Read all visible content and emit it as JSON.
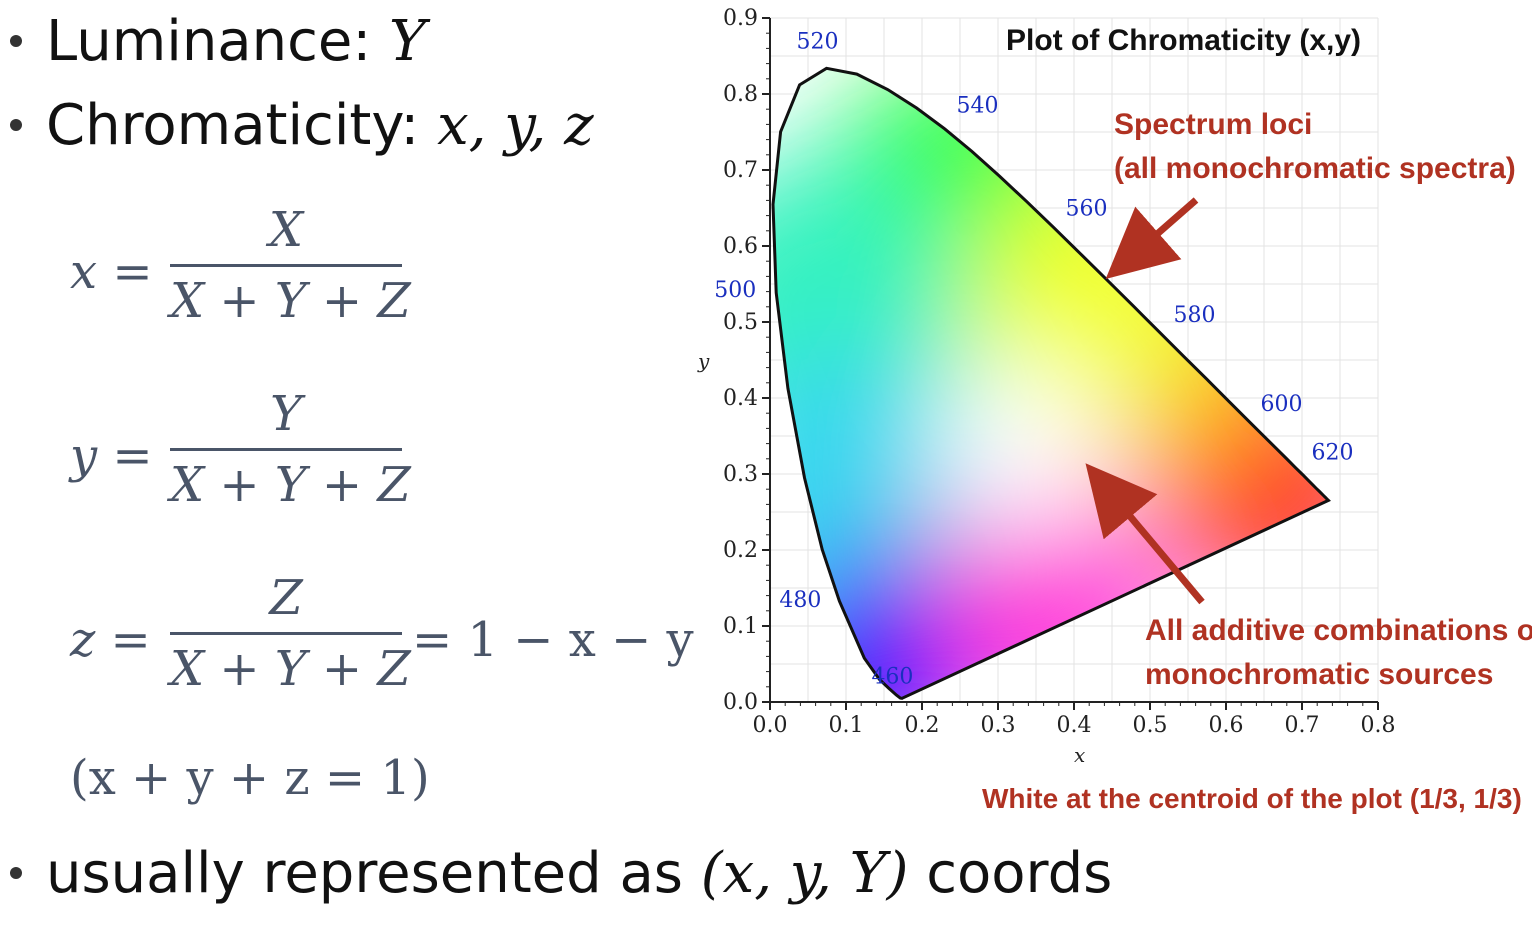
{
  "bullets": [
    {
      "label": "Luminance:",
      "symbol": "Y"
    },
    {
      "label": "Chromaticity:",
      "symbol": "x, y, z"
    }
  ],
  "equations": {
    "x": {
      "lhs": "x =",
      "numerator": "X",
      "denominator": "X + Y + Z"
    },
    "y": {
      "lhs": "y =",
      "numerator": "Y",
      "denominator": "X + Y + Z"
    },
    "z": {
      "lhs": "z =",
      "numerator": "Z",
      "denominator": "X + Y + Z",
      "tail": "= 1 − x − y"
    },
    "constraint": "(x + y + z = 1)"
  },
  "footer": {
    "prefix": "usually represented as",
    "coords": "(x, y, Y)",
    "suffix": "coords"
  },
  "chart_data": {
    "type": "scatter",
    "title": "Plot of Chromaticity (x,y)",
    "xlabel": "x",
    "ylabel": "y",
    "xlim": [
      0.0,
      0.8
    ],
    "ylim": [
      0.0,
      0.9
    ],
    "x_ticks": [
      "0.0",
      "0.1",
      "0.2",
      "0.3",
      "0.4",
      "0.5",
      "0.6",
      "0.7",
      "0.8"
    ],
    "y_ticks": [
      "0.0",
      "0.1",
      "0.2",
      "0.3",
      "0.4",
      "0.5",
      "0.6",
      "0.7",
      "0.8",
      "0.9"
    ],
    "grid": true,
    "series": [
      {
        "x": [
          0.1741,
          0.1738,
          0.1714,
          0.1666,
          0.1566,
          0.144,
          0.1241,
          0.0913,
          0.0687,
          0.0454,
          0.0235,
          0.0082,
          0.0039,
          0.0139,
          0.0389,
          0.0743,
          0.1142,
          0.1547,
          0.1929,
          0.2296,
          0.2658,
          0.3016,
          0.3373,
          0.3731,
          0.4087,
          0.4441,
          0.4788,
          0.5125,
          0.5448,
          0.5752,
          0.6029,
          0.627,
          0.6482,
          0.6658,
          0.6801,
          0.6915,
          0.7006,
          0.7079,
          0.714,
          0.719,
          0.723,
          0.726,
          0.7283,
          0.73,
          0.7311,
          0.732,
          0.7327,
          0.7334,
          0.734,
          0.7344,
          0.7347,
          0.1741
        ],
        "y": [
          0.005,
          0.0049,
          0.0051,
          0.0089,
          0.0177,
          0.0297,
          0.0578,
          0.1327,
          0.2007,
          0.295,
          0.4127,
          0.5384,
          0.6548,
          0.7502,
          0.812,
          0.8338,
          0.8262,
          0.8059,
          0.7816,
          0.7543,
          0.7243,
          0.6923,
          0.6589,
          0.6245,
          0.5896,
          0.5547,
          0.5202,
          0.4866,
          0.4544,
          0.4242,
          0.3965,
          0.3725,
          0.3514,
          0.334,
          0.3197,
          0.3083,
          0.2993,
          0.292,
          0.2859,
          0.2809,
          0.277,
          0.274,
          0.2717,
          0.27,
          0.2689,
          0.268,
          0.2673,
          0.2666,
          0.266,
          0.2656,
          0.2653,
          0.005
        ]
      }
    ],
    "wavelength_labels": [
      {
        "text": "460",
        "x": 0.144,
        "y": 0.0297
      },
      {
        "text": "480",
        "x": 0.0913,
        "y": 0.1327
      },
      {
        "text": "500",
        "x": 0.0082,
        "y": 0.5384
      },
      {
        "text": "520",
        "x": 0.0743,
        "y": 0.8338
      },
      {
        "text": "540",
        "x": 0.2296,
        "y": 0.7543
      },
      {
        "text": "560",
        "x": 0.3731,
        "y": 0.6245
      },
      {
        "text": "580",
        "x": 0.5125,
        "y": 0.4866
      },
      {
        "text": "600",
        "x": 0.627,
        "y": 0.3725
      },
      {
        "text": "620",
        "x": 0.6915,
        "y": 0.3083
      }
    ],
    "annotations": [
      {
        "text": "Spectrum loci"
      },
      {
        "text": "(all monochromatic spectra)"
      },
      {
        "text": "All additive combinations of"
      },
      {
        "text": "monochromatic sources"
      },
      {
        "text": "White at the centroid of the plot (1/3, 1/3)"
      }
    ],
    "colors": {
      "annotation": "#b03222",
      "wavelength": "#1a2fbf",
      "axes": "#222222"
    }
  }
}
